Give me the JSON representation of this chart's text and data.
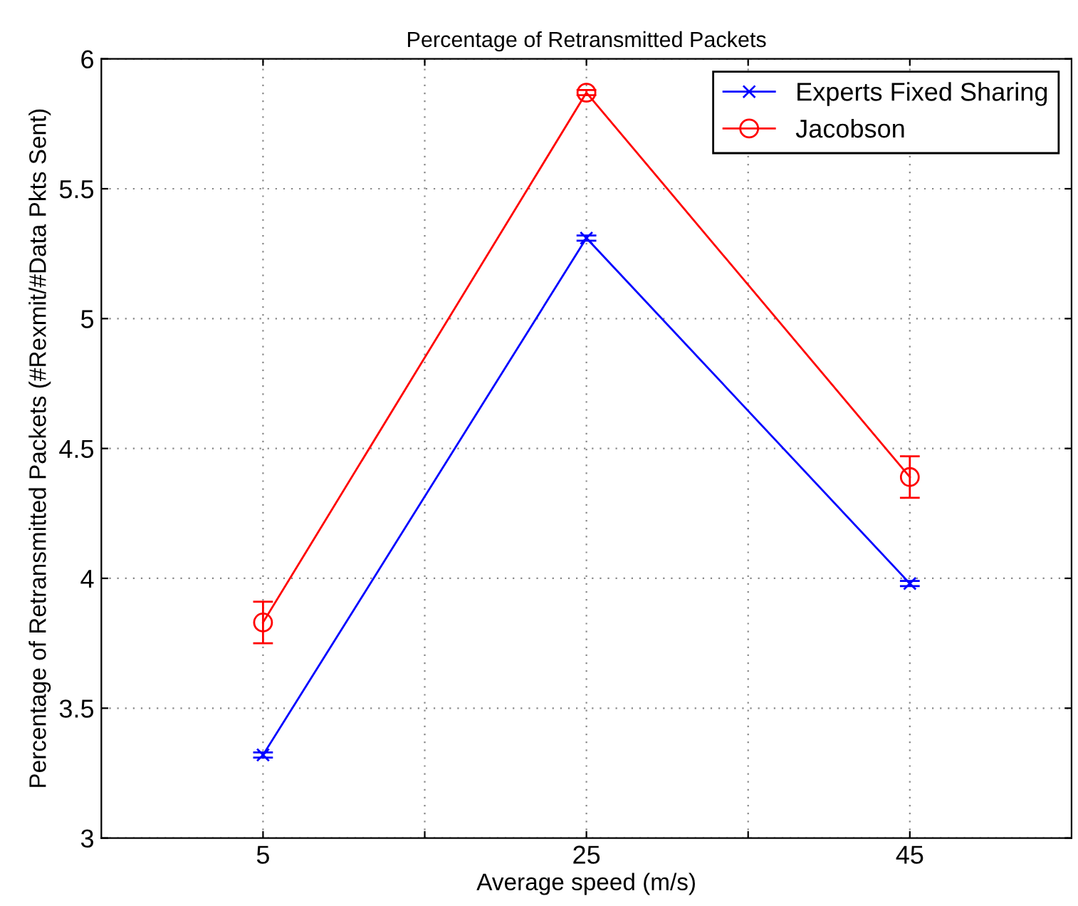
{
  "chart_data": {
    "type": "line",
    "title": "Percentage of Retransmitted Packets",
    "xlabel": "Average speed (m/s)",
    "ylabel": "Percentage of Retransmitted Packets (#Rexmit/#Data Pkts Sent)",
    "x": [
      5,
      25,
      45
    ],
    "series": [
      {
        "name": "Experts Fixed Sharing",
        "color": "#0000ff",
        "marker": "cross",
        "values": [
          3.32,
          5.31,
          3.98
        ],
        "errors": [
          0.01,
          0.01,
          0.01
        ]
      },
      {
        "name": "Jacobson",
        "color": "#ff0000",
        "marker": "circle",
        "values": [
          3.83,
          5.87,
          4.39
        ],
        "errors": [
          0.08,
          0.01,
          0.08
        ]
      }
    ],
    "xlim": [
      -5,
      55
    ],
    "xticks": [
      5,
      {
        "value": 15,
        "label": null
      },
      25,
      {
        "value": 35,
        "label": null
      },
      45
    ],
    "ylim": [
      3,
      6
    ],
    "yticks": [
      3,
      3.5,
      4,
      4.5,
      5,
      5.5,
      6
    ],
    "grid": true,
    "legend": "top right",
    "line_style": "solid"
  }
}
